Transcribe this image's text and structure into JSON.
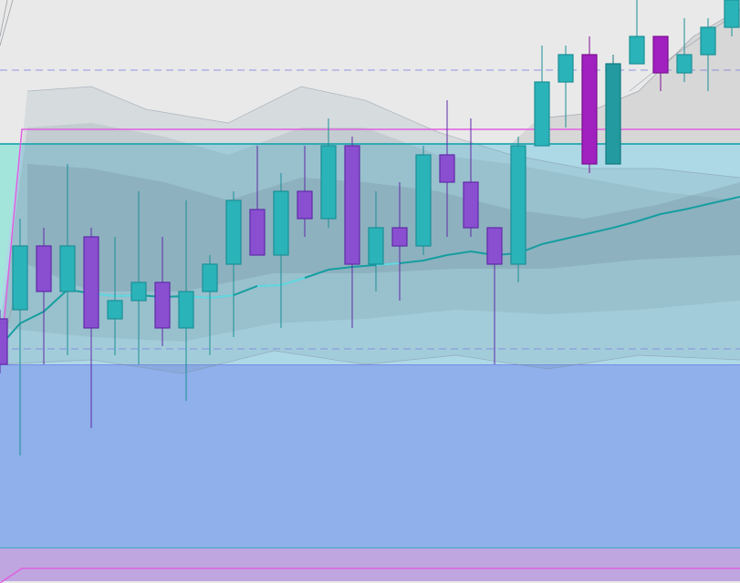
{
  "chart_data": {
    "type": "candlestick",
    "ylim": [
      0,
      640
    ],
    "grid": false,
    "colors": {
      "background": "#e9e9e9",
      "bull": "#2ab3b8",
      "bull_edge": "#1b8f96",
      "bear": "#8a4fd0",
      "bear_edge": "#5f2aa8",
      "bear_strong": "#a020c0",
      "bull_dark": "#229aa0",
      "ma_line": "#169ea0",
      "ma_line_light": "#6ee0ea",
      "zone_upper": "#add8e6",
      "zone_upper_edge": "#22a8b0",
      "zone_lower": "#8fb0ea",
      "zone_lower_edge": "#7080e8",
      "magenta_box": "#e060e0",
      "dashed_line": "#8080e0",
      "envelope": "#7a8a9a"
    },
    "candles": [
      {
        "x": 0,
        "o": 290,
        "c": 240,
        "h": 300,
        "l": 230
      },
      {
        "x": 22,
        "o": 300,
        "c": 370,
        "h": 400,
        "l": 140
      },
      {
        "x": 48,
        "o": 370,
        "c": 320,
        "h": 390,
        "l": 240
      },
      {
        "x": 74,
        "o": 320,
        "c": 370,
        "h": 460,
        "l": 250
      },
      {
        "x": 100,
        "o": 380,
        "c": 280,
        "h": 390,
        "l": 170
      },
      {
        "x": 126,
        "o": 290,
        "c": 310,
        "h": 380,
        "l": 250
      },
      {
        "x": 152,
        "o": 310,
        "c": 330,
        "h": 430,
        "l": 240
      },
      {
        "x": 178,
        "o": 330,
        "c": 280,
        "h": 380,
        "l": 260
      },
      {
        "x": 204,
        "o": 280,
        "c": 320,
        "h": 420,
        "l": 200
      },
      {
        "x": 230,
        "o": 320,
        "c": 350,
        "h": 360,
        "l": 250
      },
      {
        "x": 256,
        "o": 350,
        "c": 420,
        "h": 430,
        "l": 270
      },
      {
        "x": 282,
        "o": 410,
        "c": 360,
        "h": 480,
        "l": 360
      },
      {
        "x": 308,
        "o": 360,
        "c": 430,
        "h": 450,
        "l": 280
      },
      {
        "x": 334,
        "o": 430,
        "c": 400,
        "h": 480,
        "l": 380
      },
      {
        "x": 360,
        "o": 400,
        "c": 480,
        "h": 510,
        "l": 390
      },
      {
        "x": 386,
        "o": 480,
        "c": 350,
        "h": 490,
        "l": 280
      },
      {
        "x": 412,
        "o": 350,
        "c": 390,
        "h": 430,
        "l": 320
      },
      {
        "x": 438,
        "o": 390,
        "c": 370,
        "h": 440,
        "l": 310
      },
      {
        "x": 464,
        "o": 370,
        "c": 470,
        "h": 480,
        "l": 360
      },
      {
        "x": 490,
        "o": 470,
        "c": 440,
        "h": 530,
        "l": 380
      },
      {
        "x": 516,
        "o": 440,
        "c": 390,
        "h": 510,
        "l": 380
      },
      {
        "x": 542,
        "o": 390,
        "c": 350,
        "h": 390,
        "l": 240
      },
      {
        "x": 568,
        "o": 350,
        "c": 480,
        "h": 490,
        "l": 330
      },
      {
        "x": 594,
        "o": 480,
        "c": 550,
        "h": 590,
        "l": 480
      },
      {
        "x": 620,
        "o": 550,
        "c": 580,
        "h": 590,
        "l": 500
      },
      {
        "x": 646,
        "o": 580,
        "c": 460,
        "h": 600,
        "l": 450,
        "strong": true
      },
      {
        "x": 672,
        "o": 460,
        "c": 570,
        "h": 580,
        "l": 460,
        "dark": true
      },
      {
        "x": 698,
        "o": 570,
        "c": 600,
        "h": 640,
        "l": 570
      },
      {
        "x": 724,
        "o": 600,
        "c": 560,
        "h": 600,
        "l": 540,
        "strong": true
      },
      {
        "x": 750,
        "o": 560,
        "c": 580,
        "h": 620,
        "l": 550
      },
      {
        "x": 776,
        "o": 580,
        "c": 610,
        "h": 620,
        "l": 540
      },
      {
        "x": 802,
        "o": 610,
        "c": 640,
        "h": 640,
        "l": 600
      }
    ],
    "ma": [
      [
        0,
        260
      ],
      [
        22,
        285
      ],
      [
        48,
        298
      ],
      [
        74,
        322
      ],
      [
        100,
        318
      ],
      [
        126,
        315
      ],
      [
        152,
        316
      ],
      [
        178,
        314
      ],
      [
        204,
        315
      ],
      [
        230,
        313
      ],
      [
        256,
        316
      ],
      [
        282,
        326
      ],
      [
        308,
        327
      ],
      [
        334,
        335
      ],
      [
        360,
        344
      ],
      [
        386,
        347
      ],
      [
        412,
        349
      ],
      [
        438,
        351
      ],
      [
        464,
        354
      ],
      [
        490,
        360
      ],
      [
        516,
        364
      ],
      [
        542,
        360
      ],
      [
        568,
        362
      ],
      [
        594,
        372
      ],
      [
        620,
        378
      ],
      [
        646,
        384
      ],
      [
        672,
        390
      ],
      [
        698,
        397
      ],
      [
        724,
        405
      ],
      [
        750,
        410
      ],
      [
        776,
        416
      ],
      [
        811,
        424
      ]
    ],
    "ma_light_segments": [
      [
        110,
        150
      ],
      [
        205,
        250
      ],
      [
        285,
        315
      ],
      [
        412,
        440
      ]
    ],
    "band_outer": {
      "upper": [
        [
          30,
          540
        ],
        [
          100,
          545
        ],
        [
          160,
          520
        ],
        [
          250,
          505
        ],
        [
          330,
          545
        ],
        [
          400,
          530
        ],
        [
          480,
          495
        ],
        [
          560,
          470
        ],
        [
          640,
          455
        ],
        [
          720,
          455
        ],
        [
          811,
          445
        ]
      ],
      "lower": [
        [
          0,
          240
        ],
        [
          100,
          245
        ],
        [
          200,
          230
        ],
        [
          300,
          255
        ],
        [
          400,
          240
        ],
        [
          500,
          250
        ],
        [
          600,
          235
        ],
        [
          700,
          250
        ],
        [
          811,
          245
        ]
      ]
    },
    "band_mid": {
      "upper": [
        [
          30,
          500
        ],
        [
          100,
          505
        ],
        [
          180,
          490
        ],
        [
          250,
          470
        ],
        [
          330,
          500
        ],
        [
          400,
          500
        ],
        [
          480,
          470
        ],
        [
          560,
          460
        ],
        [
          640,
          445
        ],
        [
          720,
          430
        ],
        [
          811,
          420
        ]
      ],
      "lower": [
        [
          0,
          280
        ],
        [
          100,
          270
        ],
        [
          200,
          265
        ],
        [
          300,
          285
        ],
        [
          400,
          290
        ],
        [
          500,
          300
        ],
        [
          600,
          295
        ],
        [
          700,
          300
        ],
        [
          811,
          310
        ]
      ]
    },
    "band_inner": {
      "upper": [
        [
          30,
          460
        ],
        [
          100,
          455
        ],
        [
          180,
          440
        ],
        [
          250,
          420
        ],
        [
          330,
          445
        ],
        [
          400,
          440
        ],
        [
          480,
          430
        ],
        [
          560,
          410
        ],
        [
          640,
          400
        ],
        [
          720,
          415
        ],
        [
          811,
          440
        ]
      ],
      "lower": [
        [
          30,
          350
        ],
        [
          100,
          320
        ],
        [
          200,
          320
        ],
        [
          300,
          340
        ],
        [
          400,
          340
        ],
        [
          500,
          345
        ],
        [
          600,
          345
        ],
        [
          700,
          355
        ],
        [
          811,
          360
        ]
      ]
    },
    "envelope_top": [
      [
        590,
        510
      ],
      [
        640,
        515
      ],
      [
        700,
        540
      ],
      [
        760,
        600
      ],
      [
        811,
        630
      ]
    ],
    "envelope_lines": [
      [
        [
          0,
          600
        ],
        [
          8,
          640
        ]
      ],
      [
        [
          0,
          590
        ],
        [
          14,
          640
        ]
      ],
      [
        [
          0,
          250
        ],
        [
          20,
          330
        ]
      ]
    ],
    "zones": {
      "upper_top": 482,
      "lower_top": 240,
      "lower_bottom": 38,
      "magenta_top": 498,
      "magenta_bottom": 16
    },
    "dashed_levels": [
      563,
      257
    ]
  }
}
